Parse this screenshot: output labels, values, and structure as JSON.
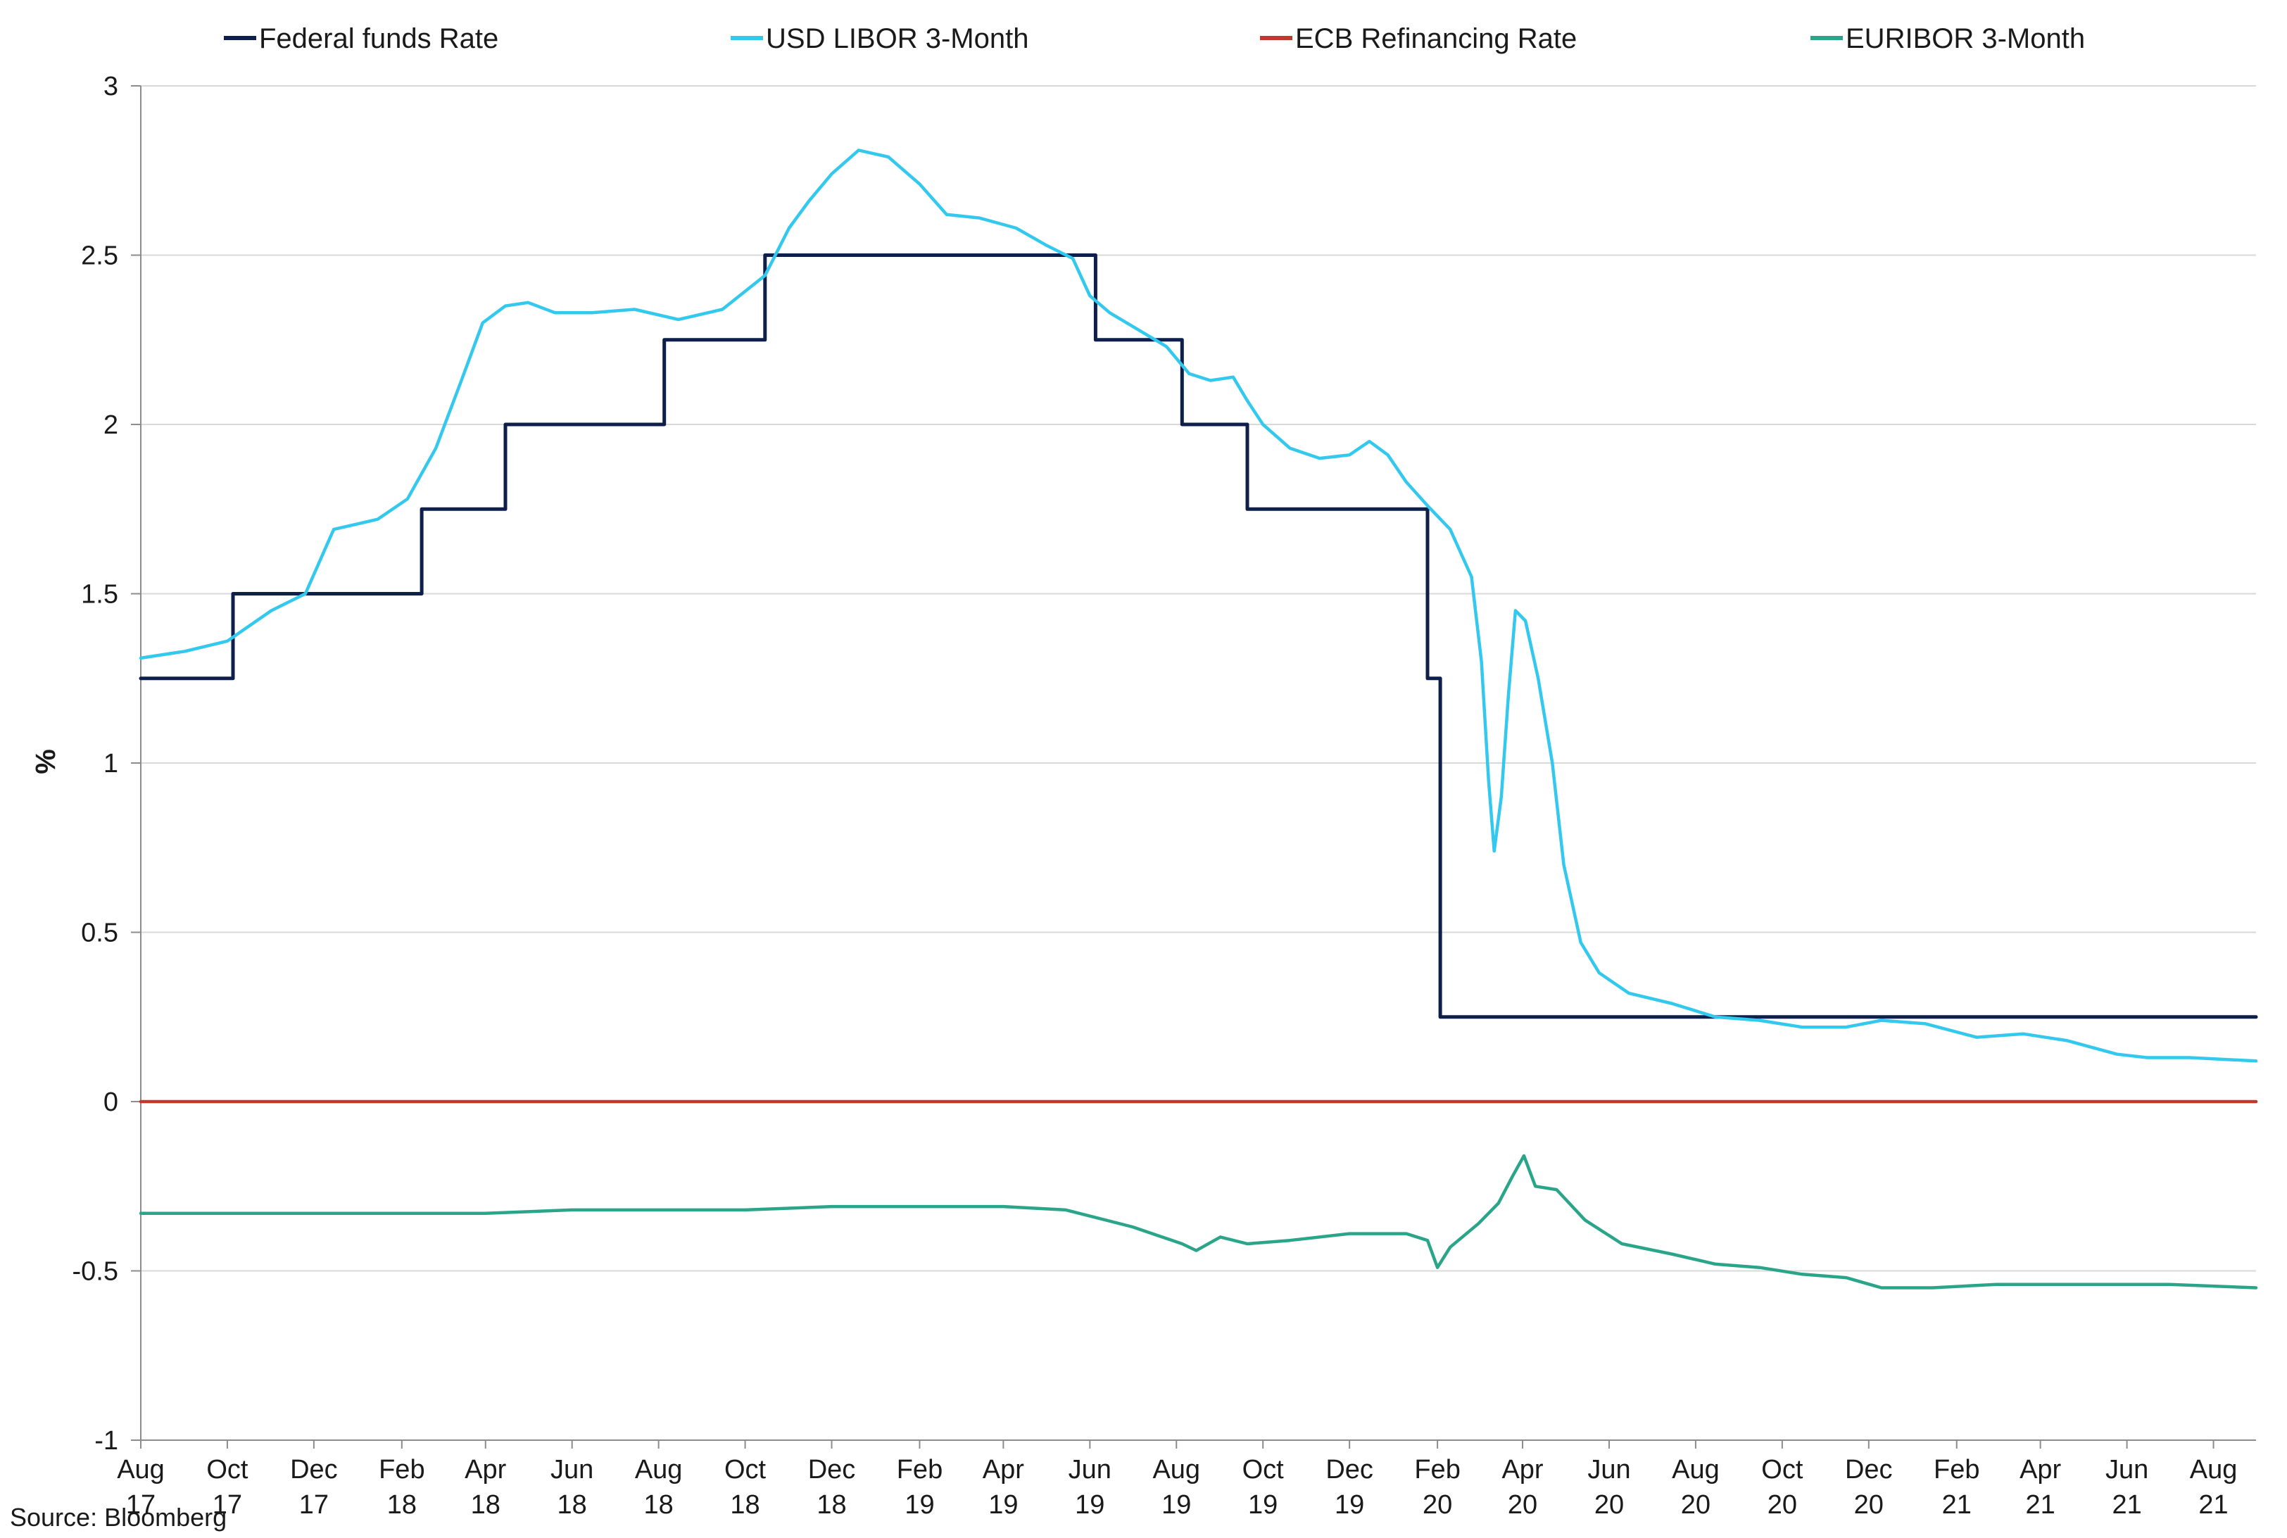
{
  "chart_data": {
    "type": "line",
    "ylabel": "%",
    "ylim": [
      -1,
      3
    ],
    "yticks": [
      "3",
      "2.5",
      "2",
      "1.5",
      "1",
      "0.5",
      "0",
      "-0.5",
      "-1"
    ],
    "ytick_values": [
      3,
      2.5,
      2,
      1.5,
      1,
      0.5,
      0,
      -0.5,
      -1
    ],
    "xlim": [
      "2017-08-01",
      "2021-08-31"
    ],
    "xticks": [
      {
        "month": "Aug",
        "year": "17",
        "date": "2017-08-01"
      },
      {
        "month": "Oct",
        "year": "17",
        "date": "2017-10-01"
      },
      {
        "month": "Dec",
        "year": "17",
        "date": "2017-12-01"
      },
      {
        "month": "Feb",
        "year": "18",
        "date": "2018-02-01"
      },
      {
        "month": "Apr",
        "year": "18",
        "date": "2018-04-01"
      },
      {
        "month": "Jun",
        "year": "18",
        "date": "2018-06-01"
      },
      {
        "month": "Aug",
        "year": "18",
        "date": "2018-08-01"
      },
      {
        "month": "Oct",
        "year": "18",
        "date": "2018-10-01"
      },
      {
        "month": "Dec",
        "year": "18",
        "date": "2018-12-01"
      },
      {
        "month": "Feb",
        "year": "19",
        "date": "2019-02-01"
      },
      {
        "month": "Apr",
        "year": "19",
        "date": "2019-04-01"
      },
      {
        "month": "Jun",
        "year": "19",
        "date": "2019-06-01"
      },
      {
        "month": "Aug",
        "year": "19",
        "date": "2019-08-01"
      },
      {
        "month": "Oct",
        "year": "19",
        "date": "2019-10-01"
      },
      {
        "month": "Dec",
        "year": "19",
        "date": "2019-12-01"
      },
      {
        "month": "Feb",
        "year": "20",
        "date": "2020-02-01"
      },
      {
        "month": "Apr",
        "year": "20",
        "date": "2020-04-01"
      },
      {
        "month": "Jun",
        "year": "20",
        "date": "2020-06-01"
      },
      {
        "month": "Aug",
        "year": "20",
        "date": "2020-08-01"
      },
      {
        "month": "Oct",
        "year": "20",
        "date": "2020-10-01"
      },
      {
        "month": "Dec",
        "year": "20",
        "date": "2020-12-01"
      },
      {
        "month": "Feb",
        "year": "21",
        "date": "2021-02-01"
      },
      {
        "month": "Apr",
        "year": "21",
        "date": "2021-04-01"
      },
      {
        "month": "Jun",
        "year": "21",
        "date": "2021-06-01"
      },
      {
        "month": "Aug",
        "year": "21",
        "date": "2021-08-01"
      }
    ],
    "grid": "horizontal",
    "legend_position": "top",
    "source": "Source: Bloomberg",
    "series": [
      {
        "name": "Federal funds Rate",
        "color": "#0d1f4a",
        "step": true,
        "points": [
          [
            "2017-08-01",
            1.25
          ],
          [
            "2017-10-05",
            1.5
          ],
          [
            "2018-02-15",
            1.75
          ],
          [
            "2018-04-15",
            2.0
          ],
          [
            "2018-08-05",
            2.25
          ],
          [
            "2018-10-15",
            2.5
          ],
          [
            "2019-06-05",
            2.25
          ],
          [
            "2019-08-05",
            2.0
          ],
          [
            "2019-09-20",
            1.75
          ],
          [
            "2020-01-25",
            1.25
          ],
          [
            "2020-02-03",
            0.25
          ],
          [
            "2021-08-31",
            0.25
          ]
        ]
      },
      {
        "name": "USD LIBOR 3-Month",
        "color": "#33c8ee",
        "step": false,
        "points": [
          [
            "2017-08-01",
            1.31
          ],
          [
            "2017-09-01",
            1.33
          ],
          [
            "2017-10-01",
            1.36
          ],
          [
            "2017-11-01",
            1.45
          ],
          [
            "2017-11-25",
            1.5
          ],
          [
            "2017-12-15",
            1.69
          ],
          [
            "2018-01-15",
            1.72
          ],
          [
            "2018-02-05",
            1.78
          ],
          [
            "2018-02-25",
            1.93
          ],
          [
            "2018-03-15",
            2.13
          ],
          [
            "2018-03-30",
            2.3
          ],
          [
            "2018-04-15",
            2.35
          ],
          [
            "2018-05-01",
            2.36
          ],
          [
            "2018-05-20",
            2.33
          ],
          [
            "2018-06-15",
            2.33
          ],
          [
            "2018-07-15",
            2.34
          ],
          [
            "2018-08-15",
            2.31
          ],
          [
            "2018-09-15",
            2.34
          ],
          [
            "2018-10-15",
            2.44
          ],
          [
            "2018-11-01",
            2.58
          ],
          [
            "2018-11-15",
            2.66
          ],
          [
            "2018-12-01",
            2.74
          ],
          [
            "2018-12-20",
            2.81
          ],
          [
            "2019-01-10",
            2.79
          ],
          [
            "2019-02-01",
            2.71
          ],
          [
            "2019-02-20",
            2.62
          ],
          [
            "2019-03-15",
            2.61
          ],
          [
            "2019-04-10",
            2.58
          ],
          [
            "2019-05-01",
            2.53
          ],
          [
            "2019-05-20",
            2.49
          ],
          [
            "2019-06-01",
            2.38
          ],
          [
            "2019-06-15",
            2.33
          ],
          [
            "2019-07-05",
            2.28
          ],
          [
            "2019-07-25",
            2.23
          ],
          [
            "2019-08-10",
            2.15
          ],
          [
            "2019-08-25",
            2.13
          ],
          [
            "2019-09-10",
            2.14
          ],
          [
            "2019-09-20",
            2.07
          ],
          [
            "2019-10-01",
            2.0
          ],
          [
            "2019-10-20",
            1.93
          ],
          [
            "2019-11-10",
            1.9
          ],
          [
            "2019-12-01",
            1.91
          ],
          [
            "2019-12-15",
            1.95
          ],
          [
            "2019-12-28",
            1.91
          ],
          [
            "2020-01-10",
            1.83
          ],
          [
            "2020-01-25",
            1.76
          ],
          [
            "2020-02-10",
            1.69
          ],
          [
            "2020-02-25",
            1.55
          ],
          [
            "2020-03-03",
            1.3
          ],
          [
            "2020-03-08",
            0.95
          ],
          [
            "2020-03-12",
            0.74
          ],
          [
            "2020-03-17",
            0.9
          ],
          [
            "2020-03-22",
            1.2
          ],
          [
            "2020-03-27",
            1.45
          ],
          [
            "2020-04-03",
            1.42
          ],
          [
            "2020-04-12",
            1.25
          ],
          [
            "2020-04-22",
            1.0
          ],
          [
            "2020-04-30",
            0.7
          ],
          [
            "2020-05-12",
            0.47
          ],
          [
            "2020-05-25",
            0.38
          ],
          [
            "2020-06-15",
            0.32
          ],
          [
            "2020-07-15",
            0.29
          ],
          [
            "2020-08-15",
            0.25
          ],
          [
            "2020-09-15",
            0.24
          ],
          [
            "2020-10-15",
            0.22
          ],
          [
            "2020-11-15",
            0.22
          ],
          [
            "2020-12-10",
            0.24
          ],
          [
            "2021-01-10",
            0.23
          ],
          [
            "2021-02-15",
            0.19
          ],
          [
            "2021-03-20",
            0.2
          ],
          [
            "2021-04-20",
            0.18
          ],
          [
            "2021-05-25",
            0.14
          ],
          [
            "2021-06-15",
            0.13
          ],
          [
            "2021-07-15",
            0.13
          ],
          [
            "2021-08-31",
            0.12
          ]
        ]
      },
      {
        "name": "ECB Refinancing Rate",
        "color": "#c0392b",
        "step": false,
        "points": [
          [
            "2017-08-01",
            0.0
          ],
          [
            "2021-08-31",
            0.0
          ]
        ]
      },
      {
        "name": "EURIBOR 3-Month",
        "color": "#2aa58a",
        "step": false,
        "points": [
          [
            "2017-08-01",
            -0.33
          ],
          [
            "2018-04-01",
            -0.33
          ],
          [
            "2018-06-01",
            -0.32
          ],
          [
            "2018-10-01",
            -0.32
          ],
          [
            "2018-12-01",
            -0.31
          ],
          [
            "2019-04-01",
            -0.31
          ],
          [
            "2019-05-15",
            -0.32
          ],
          [
            "2019-07-01",
            -0.37
          ],
          [
            "2019-08-05",
            -0.42
          ],
          [
            "2019-08-15",
            -0.44
          ],
          [
            "2019-09-01",
            -0.4
          ],
          [
            "2019-09-20",
            -0.42
          ],
          [
            "2019-10-20",
            -0.41
          ],
          [
            "2019-12-01",
            -0.39
          ],
          [
            "2020-01-10",
            -0.39
          ],
          [
            "2020-01-25",
            -0.41
          ],
          [
            "2020-02-01",
            -0.49
          ],
          [
            "2020-02-10",
            -0.43
          ],
          [
            "2020-03-01",
            -0.36
          ],
          [
            "2020-03-15",
            -0.3
          ],
          [
            "2020-03-25",
            -0.22
          ],
          [
            "2020-04-02",
            -0.16
          ],
          [
            "2020-04-10",
            -0.25
          ],
          [
            "2020-04-25",
            -0.26
          ],
          [
            "2020-05-15",
            -0.35
          ],
          [
            "2020-06-10",
            -0.42
          ],
          [
            "2020-07-15",
            -0.45
          ],
          [
            "2020-08-15",
            -0.48
          ],
          [
            "2020-09-15",
            -0.49
          ],
          [
            "2020-10-15",
            -0.51
          ],
          [
            "2020-11-15",
            -0.52
          ],
          [
            "2020-12-10",
            -0.55
          ],
          [
            "2021-01-15",
            -0.55
          ],
          [
            "2021-03-01",
            -0.54
          ],
          [
            "2021-05-01",
            -0.54
          ],
          [
            "2021-07-01",
            -0.54
          ],
          [
            "2021-08-31",
            -0.55
          ]
        ]
      }
    ]
  }
}
